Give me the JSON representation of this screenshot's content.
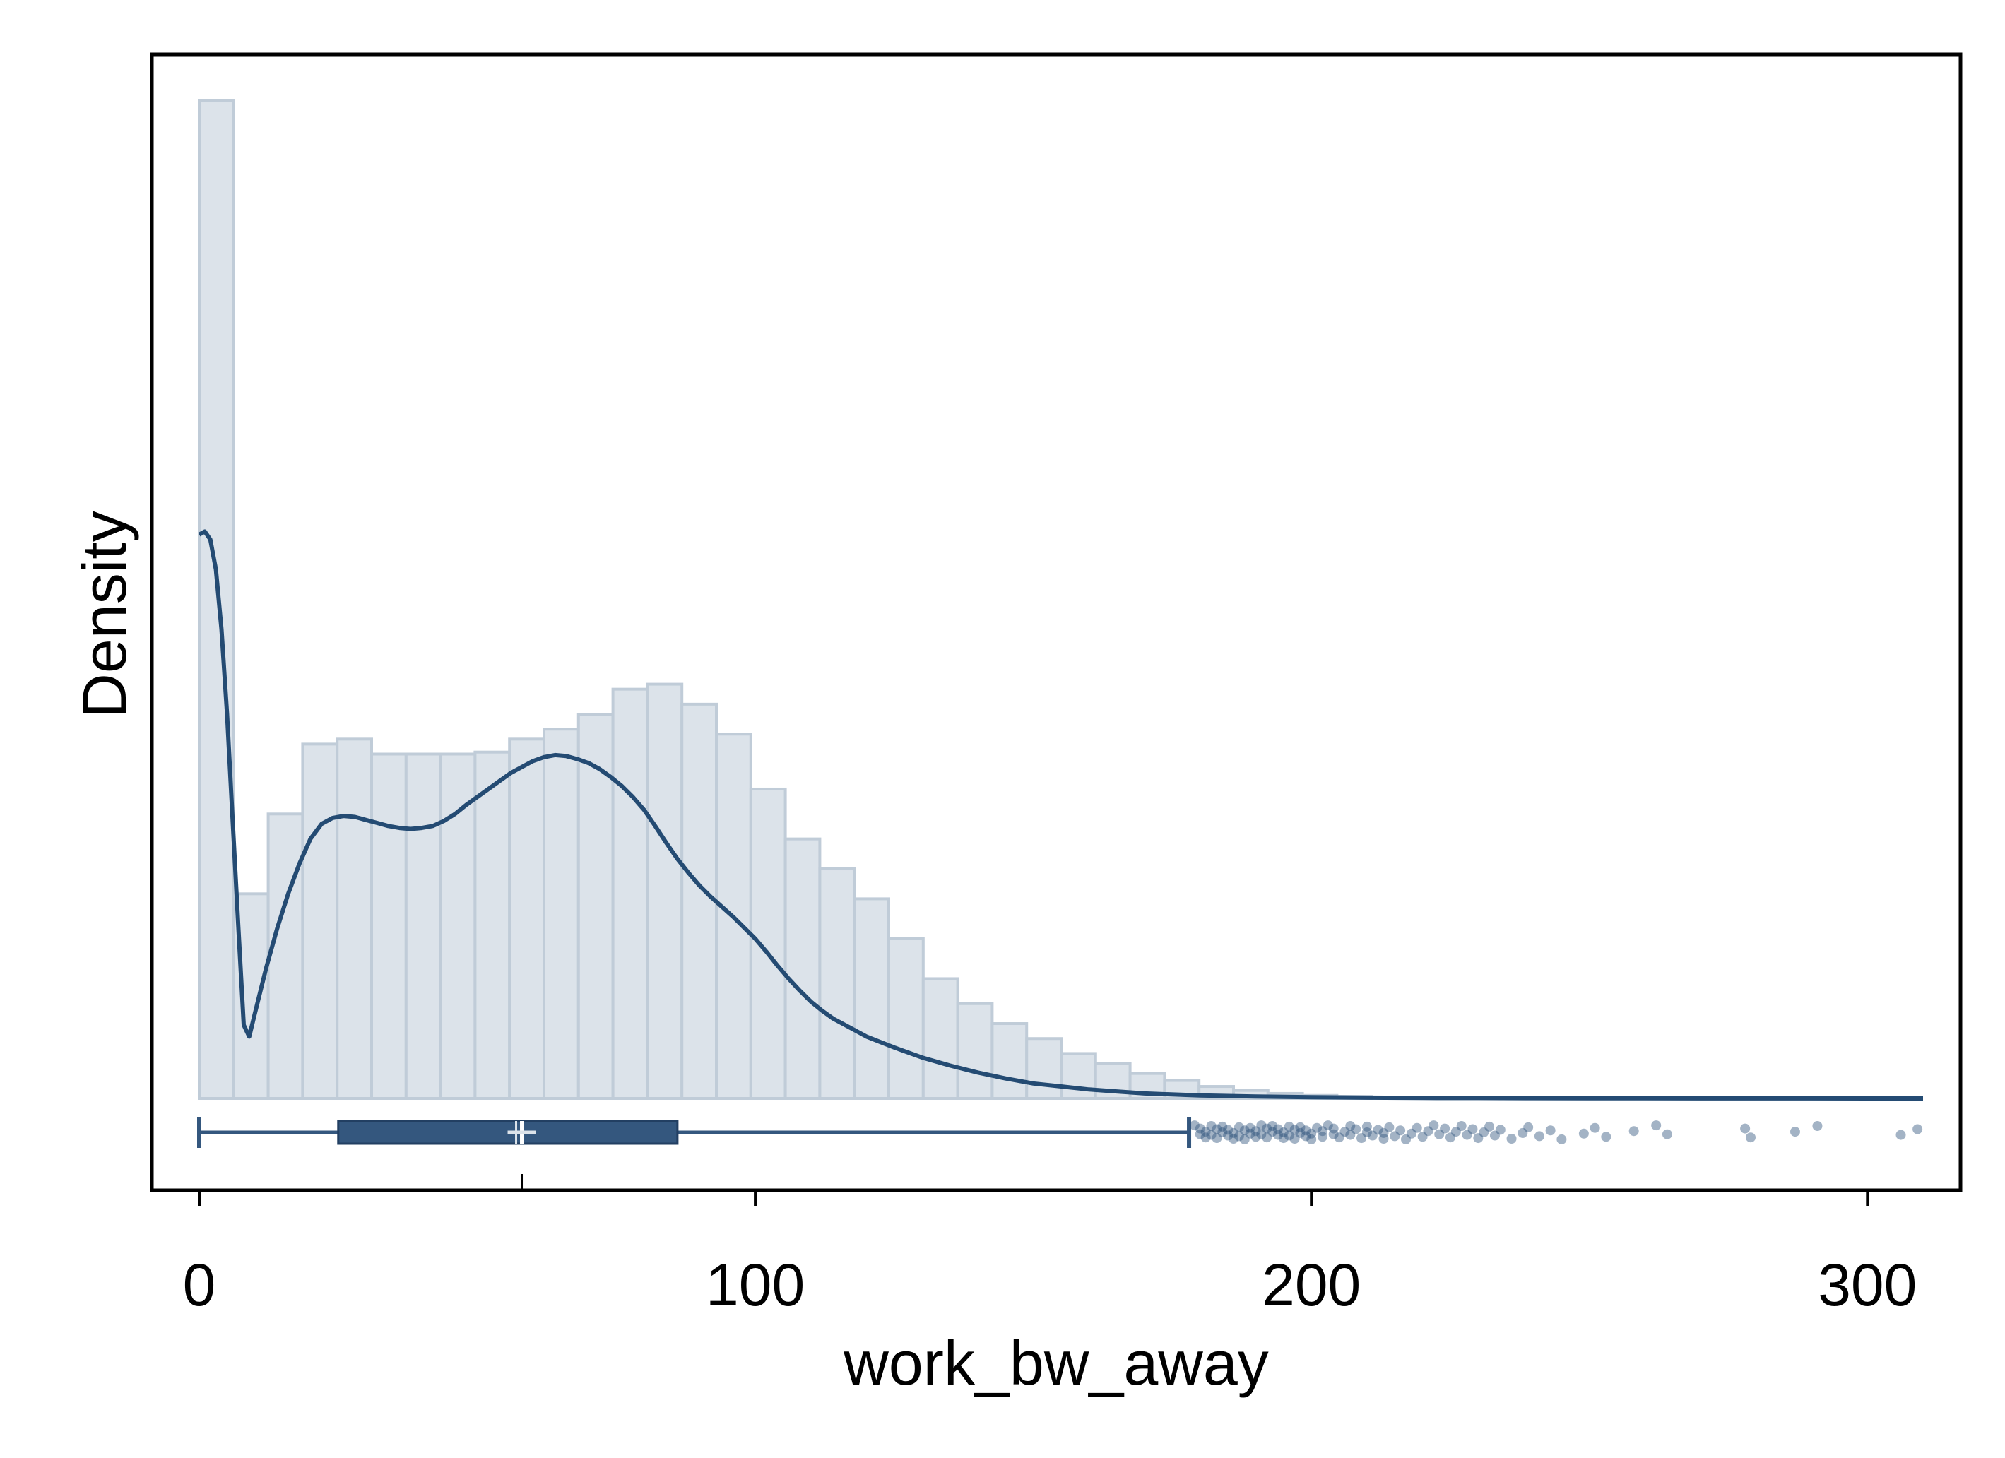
{
  "chart_data": {
    "type": "histogram",
    "title": "",
    "xlabel": "work_bw_away",
    "ylabel": "Density",
    "xlim": [
      -8,
      318
    ],
    "x_ticks": [
      0,
      100,
      200,
      300
    ],
    "x_tick_labels": [
      "0",
      "100",
      "200",
      "300"
    ],
    "y_ticks_shown": false,
    "grid": false,
    "legend": "none",
    "histogram": {
      "bin_width": 6.2,
      "bin_start": 0,
      "relative_heights": [
        1.0,
        0.205,
        0.285,
        0.355,
        0.36,
        0.345,
        0.345,
        0.345,
        0.347,
        0.36,
        0.37,
        0.385,
        0.41,
        0.415,
        0.395,
        0.365,
        0.31,
        0.26,
        0.23,
        0.2,
        0.16,
        0.12,
        0.095,
        0.075,
        0.06,
        0.045,
        0.035,
        0.025,
        0.018,
        0.012,
        0.008,
        0.005,
        0.003,
        0.002
      ]
    },
    "density_curve": {
      "x": [
        0,
        1,
        2,
        3,
        4,
        5,
        6,
        7,
        8,
        9,
        10,
        12,
        14,
        16,
        18,
        20,
        22,
        24,
        26,
        28,
        30,
        32,
        34,
        36,
        38,
        40,
        42,
        44,
        46,
        48,
        50,
        52,
        54,
        56,
        58,
        60,
        62,
        64,
        66,
        68,
        70,
        72,
        74,
        76,
        78,
        80,
        82,
        84,
        86,
        88,
        90,
        92,
        94,
        96,
        98,
        100,
        102,
        104,
        106,
        108,
        110,
        112,
        114,
        116,
        118,
        120,
        125,
        130,
        135,
        140,
        145,
        150,
        155,
        160,
        165,
        170,
        180,
        190,
        200,
        210,
        220,
        230,
        240,
        250,
        260,
        270,
        280,
        290,
        300,
        310
      ],
      "relative_density": [
        0.565,
        0.568,
        0.56,
        0.53,
        0.47,
        0.385,
        0.28,
        0.175,
        0.0735,
        0.062,
        0.085,
        0.13,
        0.17,
        0.205,
        0.235,
        0.26,
        0.275,
        0.281,
        0.283,
        0.282,
        0.279,
        0.276,
        0.273,
        0.271,
        0.27,
        0.271,
        0.273,
        0.278,
        0.285,
        0.294,
        0.302,
        0.31,
        0.318,
        0.326,
        0.332,
        0.338,
        0.342,
        0.344,
        0.343,
        0.34,
        0.336,
        0.33,
        0.322,
        0.313,
        0.302,
        0.289,
        0.273,
        0.256,
        0.24,
        0.226,
        0.213,
        0.202,
        0.192,
        0.182,
        0.171,
        0.16,
        0.147,
        0.133,
        0.12,
        0.108,
        0.097,
        0.088,
        0.08,
        0.074,
        0.068,
        0.062,
        0.051,
        0.041,
        0.033,
        0.026,
        0.02,
        0.015,
        0.012,
        0.009,
        0.007,
        0.005,
        0.003,
        0.002,
        0.0012,
        0.0008,
        0.0005,
        0.0004,
        0.0003,
        0.0002,
        0.0002,
        0.0001,
        0.0001,
        0.0001,
        0.0,
        0.0
      ]
    },
    "box_plot": {
      "whisker_low": 0,
      "q1": 25,
      "median": 58,
      "mean": 58,
      "q3": 86,
      "whisker_high": 178,
      "outliers": [
        179,
        180,
        180,
        181,
        181,
        182,
        182,
        183,
        183,
        184,
        184,
        185,
        185,
        186,
        186,
        187,
        187,
        188,
        188,
        189,
        189,
        190,
        190,
        191,
        191,
        192,
        192,
        193,
        193,
        194,
        194,
        195,
        195,
        196,
        196,
        197,
        197,
        198,
        198,
        199,
        199,
        200,
        200,
        201,
        202,
        202,
        203,
        204,
        204,
        205,
        206,
        207,
        207,
        208,
        209,
        210,
        210,
        211,
        212,
        213,
        213,
        214,
        215,
        216,
        217,
        218,
        219,
        220,
        221,
        222,
        223,
        224,
        225,
        226,
        227,
        228,
        229,
        230,
        231,
        232,
        233,
        234,
        236,
        238,
        239,
        241,
        243,
        245,
        249,
        251,
        253,
        258,
        262,
        264,
        278,
        279,
        287,
        291,
        306,
        309
      ]
    },
    "colors": {
      "curve": "#244b73",
      "bar_fill": "#dce3ea",
      "bar_edge": "#c0ccd8",
      "box": "#34577e",
      "outlier": "#34577e",
      "frame": "#000000"
    }
  }
}
